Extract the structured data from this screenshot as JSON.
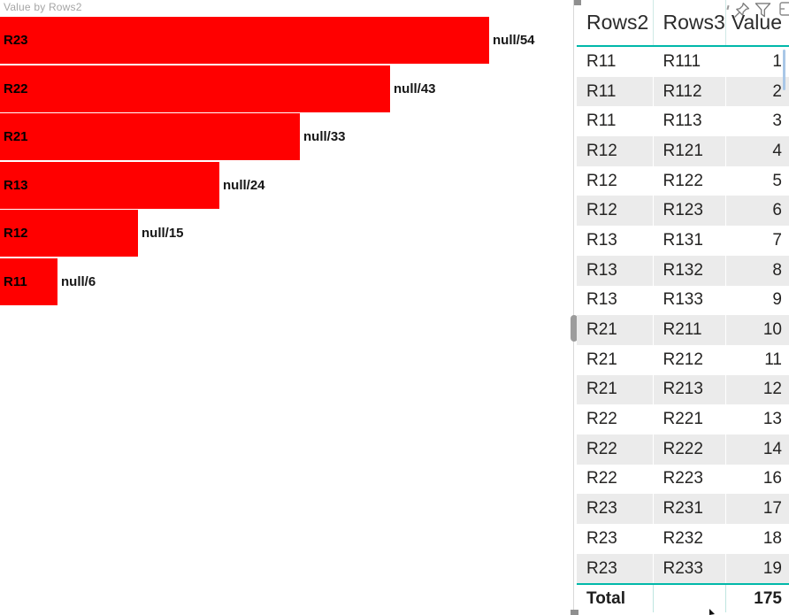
{
  "chart_data": {
    "type": "bar",
    "orientation": "horizontal",
    "title": "Value by Rows2",
    "categories": [
      "R23",
      "R22",
      "R21",
      "R13",
      "R12",
      "R11"
    ],
    "values": [
      54,
      43,
      33,
      24,
      15,
      6
    ],
    "data_labels": [
      "null/54",
      "null/43",
      "null/33",
      "null/24",
      "null/15",
      "null/6"
    ],
    "series_name": "Value",
    "sorted": "descending",
    "bar_color": "#ff0000",
    "xlabel": "",
    "ylabel": "",
    "legend": false,
    "gridlines": false,
    "axis": {
      "x_min": 0,
      "x_max_implied": 60,
      "axis_labels_visible": false
    }
  },
  "table": {
    "columns": [
      "Rows2",
      "Rows3",
      "Value"
    ],
    "rows": [
      [
        "R11",
        "R111",
        "1"
      ],
      [
        "R11",
        "R112",
        "2"
      ],
      [
        "R11",
        "R113",
        "3"
      ],
      [
        "R12",
        "R121",
        "4"
      ],
      [
        "R12",
        "R122",
        "5"
      ],
      [
        "R12",
        "R123",
        "6"
      ],
      [
        "R13",
        "R131",
        "7"
      ],
      [
        "R13",
        "R132",
        "8"
      ],
      [
        "R13",
        "R133",
        "9"
      ],
      [
        "R21",
        "R211",
        "10"
      ],
      [
        "R21",
        "R212",
        "11"
      ],
      [
        "R21",
        "R213",
        "12"
      ],
      [
        "R22",
        "R221",
        "13"
      ],
      [
        "R22",
        "R222",
        "14"
      ],
      [
        "R22",
        "R223",
        "16"
      ],
      [
        "R23",
        "R231",
        "17"
      ],
      [
        "R23",
        "R232",
        "18"
      ],
      [
        "R23",
        "R233",
        "19"
      ]
    ],
    "total_label": "Total",
    "total_value": "175"
  },
  "visual_header": {
    "icons": [
      "pin-visual-icon",
      "filter-icon",
      "more-options-icon-partial"
    ]
  },
  "colors": {
    "bar_red": "#ff0000",
    "accent_teal": "#01b8aa",
    "row_alt_gray": "#ebebeb",
    "title_gray": "#a6a6a6",
    "icon_gray": "#7a7a7a"
  }
}
